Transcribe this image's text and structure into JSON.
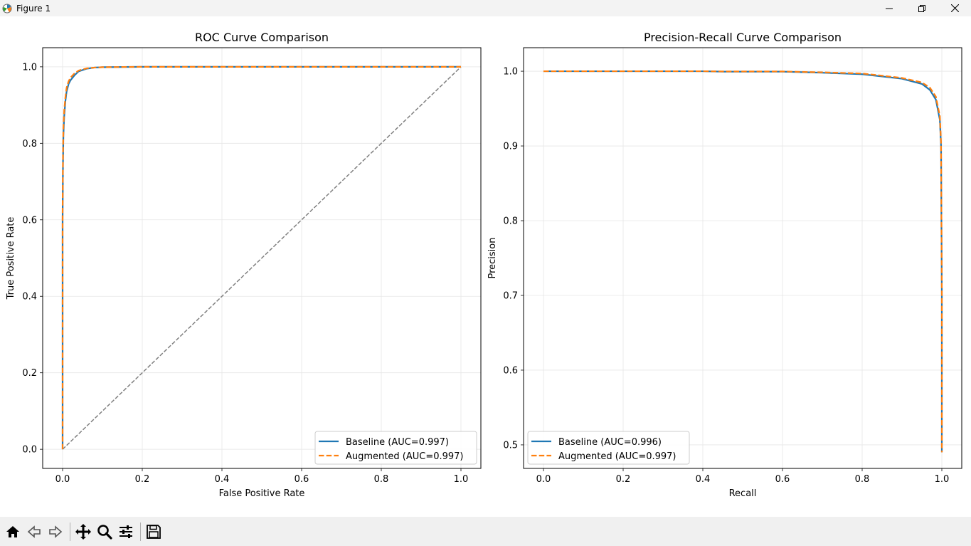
{
  "window": {
    "title": "Figure 1",
    "controls": [
      "minimize",
      "restore",
      "close"
    ]
  },
  "toolbar": {
    "buttons": [
      "home-icon",
      "back-arrow-icon",
      "forward-arrow-icon",
      "pan-icon",
      "zoom-icon",
      "configure-subplots-icon",
      "save-icon"
    ]
  },
  "colors": {
    "baseline": "#1f77b4",
    "augmented": "#ff7f0e",
    "chance": "#808080",
    "grid": "#e6e6e6"
  },
  "chart_data": [
    {
      "type": "line",
      "title": "ROC Curve Comparison",
      "xlabel": "False Positive Rate",
      "ylabel": "True Positive Rate",
      "xlim": [
        -0.05,
        1.05
      ],
      "ylim": [
        -0.05,
        1.05
      ],
      "xticks": [
        0.0,
        0.2,
        0.4,
        0.6,
        0.8,
        1.0
      ],
      "yticks": [
        0.0,
        0.2,
        0.4,
        0.6,
        0.8,
        1.0
      ],
      "tick_labels_x": [
        "0.0",
        "0.2",
        "0.4",
        "0.6",
        "0.8",
        "1.0"
      ],
      "tick_labels_y": [
        "0.0",
        "0.2",
        "0.4",
        "0.6",
        "0.8",
        "1.0"
      ],
      "grid": true,
      "legend_position": "lower-right",
      "reference_line": {
        "x": [
          0,
          1
        ],
        "y": [
          0,
          1
        ],
        "style": "dashed"
      },
      "series": [
        {
          "name": "Baseline (AUC=0.997)",
          "style": "solid",
          "x": [
            0,
            0,
            0.001,
            0.002,
            0.004,
            0.007,
            0.01,
            0.015,
            0.02,
            0.03,
            0.04,
            0.06,
            0.08,
            0.1,
            0.2,
            0.5,
            1.0
          ],
          "y": [
            0,
            0.6,
            0.75,
            0.82,
            0.87,
            0.91,
            0.935,
            0.955,
            0.965,
            0.978,
            0.988,
            0.995,
            0.998,
            0.999,
            1.0,
            1.0,
            1.0
          ]
        },
        {
          "name": "Augmented (AUC=0.997)",
          "style": "dashed",
          "x": [
            0,
            0,
            0.001,
            0.002,
            0.004,
            0.007,
            0.01,
            0.015,
            0.02,
            0.03,
            0.04,
            0.06,
            0.08,
            0.1,
            0.2,
            0.5,
            1.0
          ],
          "y": [
            0,
            0.62,
            0.77,
            0.84,
            0.885,
            0.92,
            0.945,
            0.962,
            0.972,
            0.983,
            0.99,
            0.996,
            0.998,
            0.999,
            1.0,
            1.0,
            1.0
          ]
        }
      ]
    },
    {
      "type": "line",
      "title": "Precision-Recall Curve Comparison",
      "xlabel": "Recall",
      "ylabel": "Precision",
      "xlim": [
        -0.05,
        1.05
      ],
      "ylim": [
        0.4685,
        1.0315
      ],
      "xticks": [
        0.0,
        0.2,
        0.4,
        0.6,
        0.8,
        1.0
      ],
      "yticks": [
        0.5,
        0.6,
        0.7,
        0.8,
        0.9,
        1.0
      ],
      "tick_labels_x": [
        "0.0",
        "0.2",
        "0.4",
        "0.6",
        "0.8",
        "1.0"
      ],
      "tick_labels_y": [
        "0.5",
        "0.6",
        "0.7",
        "0.8",
        "0.9",
        "1.0"
      ],
      "grid": true,
      "legend_position": "lower-left",
      "series": [
        {
          "name": "Baseline (AUC=0.996)",
          "style": "solid",
          "x": [
            0,
            0.2,
            0.4,
            0.45,
            0.6,
            0.7,
            0.8,
            0.9,
            0.95,
            0.97,
            0.985,
            0.995,
            0.998,
            1.0,
            1.0
          ],
          "y": [
            1.0,
            1.0,
            1.0,
            0.9995,
            0.9995,
            0.998,
            0.996,
            0.99,
            0.983,
            0.975,
            0.962,
            0.935,
            0.9,
            0.7,
            0.49
          ]
        },
        {
          "name": "Augmented (AUC=0.997)",
          "style": "dashed",
          "x": [
            0,
            0.2,
            0.4,
            0.45,
            0.6,
            0.7,
            0.8,
            0.9,
            0.95,
            0.97,
            0.985,
            0.995,
            0.998,
            1.0,
            1.0
          ],
          "y": [
            1.0,
            1.0,
            1.0,
            0.9997,
            0.9997,
            0.9985,
            0.997,
            0.991,
            0.985,
            0.978,
            0.966,
            0.94,
            0.905,
            0.7,
            0.49
          ]
        }
      ]
    }
  ]
}
